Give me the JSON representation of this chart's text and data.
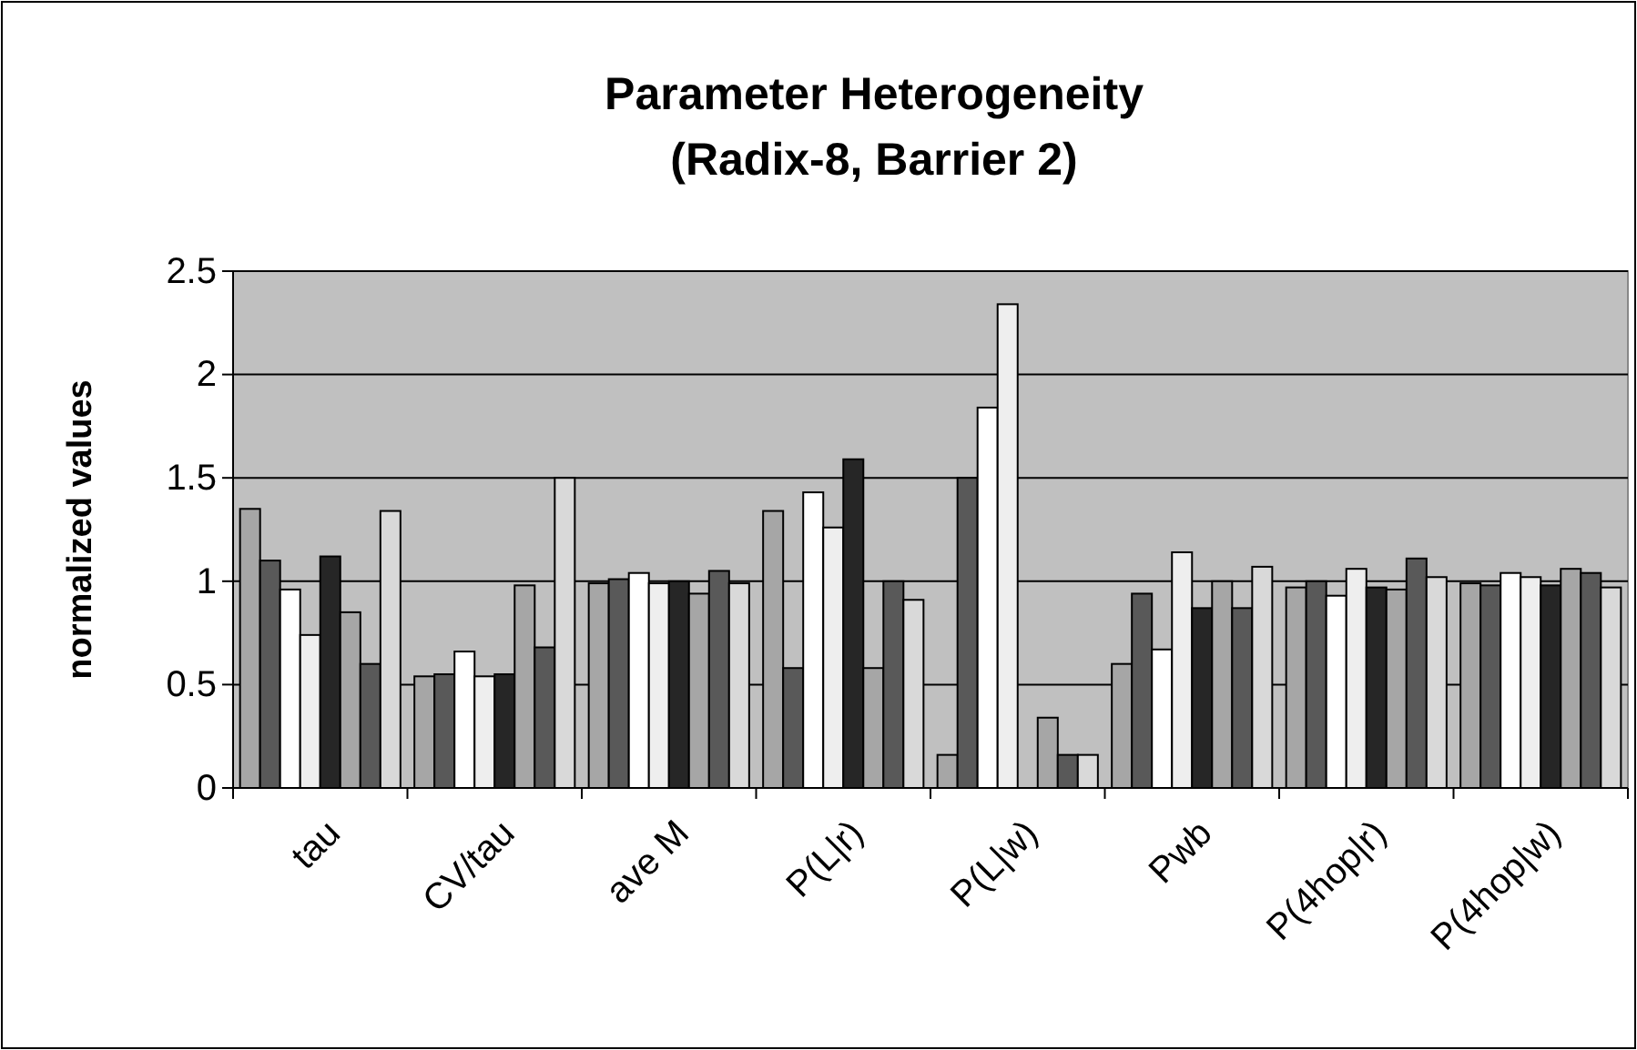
{
  "chart_data": {
    "type": "bar",
    "title": "Parameter Heterogeneity\n(Radix-8, Barrier 2)",
    "ylabel": "normalized values",
    "categories": [
      "tau",
      "CV/tau",
      "ave M",
      "P(L|r)",
      "P(L|w)",
      "Pwb",
      "P(4hop|r)",
      "P(4hop|w)"
    ],
    "series": [
      {
        "color": "#a6a6a6",
        "values": [
          1.35,
          0.54,
          0.99,
          1.34,
          0.16,
          0.6,
          0.97,
          0.99
        ]
      },
      {
        "color": "#595959",
        "values": [
          1.1,
          0.55,
          1.01,
          0.58,
          1.5,
          0.94,
          1.0,
          0.98
        ]
      },
      {
        "color": "#ffffff",
        "values": [
          0.96,
          0.66,
          1.04,
          1.43,
          1.84,
          0.67,
          0.93,
          1.04
        ]
      },
      {
        "color": "#eeeeee",
        "values": [
          0.74,
          0.54,
          0.99,
          1.26,
          2.34,
          1.14,
          1.06,
          1.02
        ]
      },
      {
        "color": "#262626",
        "values": [
          1.12,
          0.55,
          1.0,
          1.59,
          null,
          0.87,
          0.97,
          0.98
        ]
      },
      {
        "color": "#a6a6a6",
        "values": [
          0.85,
          0.98,
          0.94,
          0.58,
          0.34,
          1.0,
          0.96,
          1.06
        ]
      },
      {
        "color": "#595959",
        "values": [
          0.6,
          0.68,
          1.05,
          1.0,
          0.16,
          0.87,
          1.11,
          1.04
        ]
      },
      {
        "color": "#d9d9d9",
        "values": [
          1.34,
          1.5,
          0.99,
          0.91,
          0.16,
          1.07,
          1.02,
          0.97
        ]
      }
    ],
    "ylim": [
      0,
      2.5
    ],
    "yticks": [
      0,
      0.5,
      1,
      1.5,
      2,
      2.5
    ],
    "grid": "y"
  }
}
